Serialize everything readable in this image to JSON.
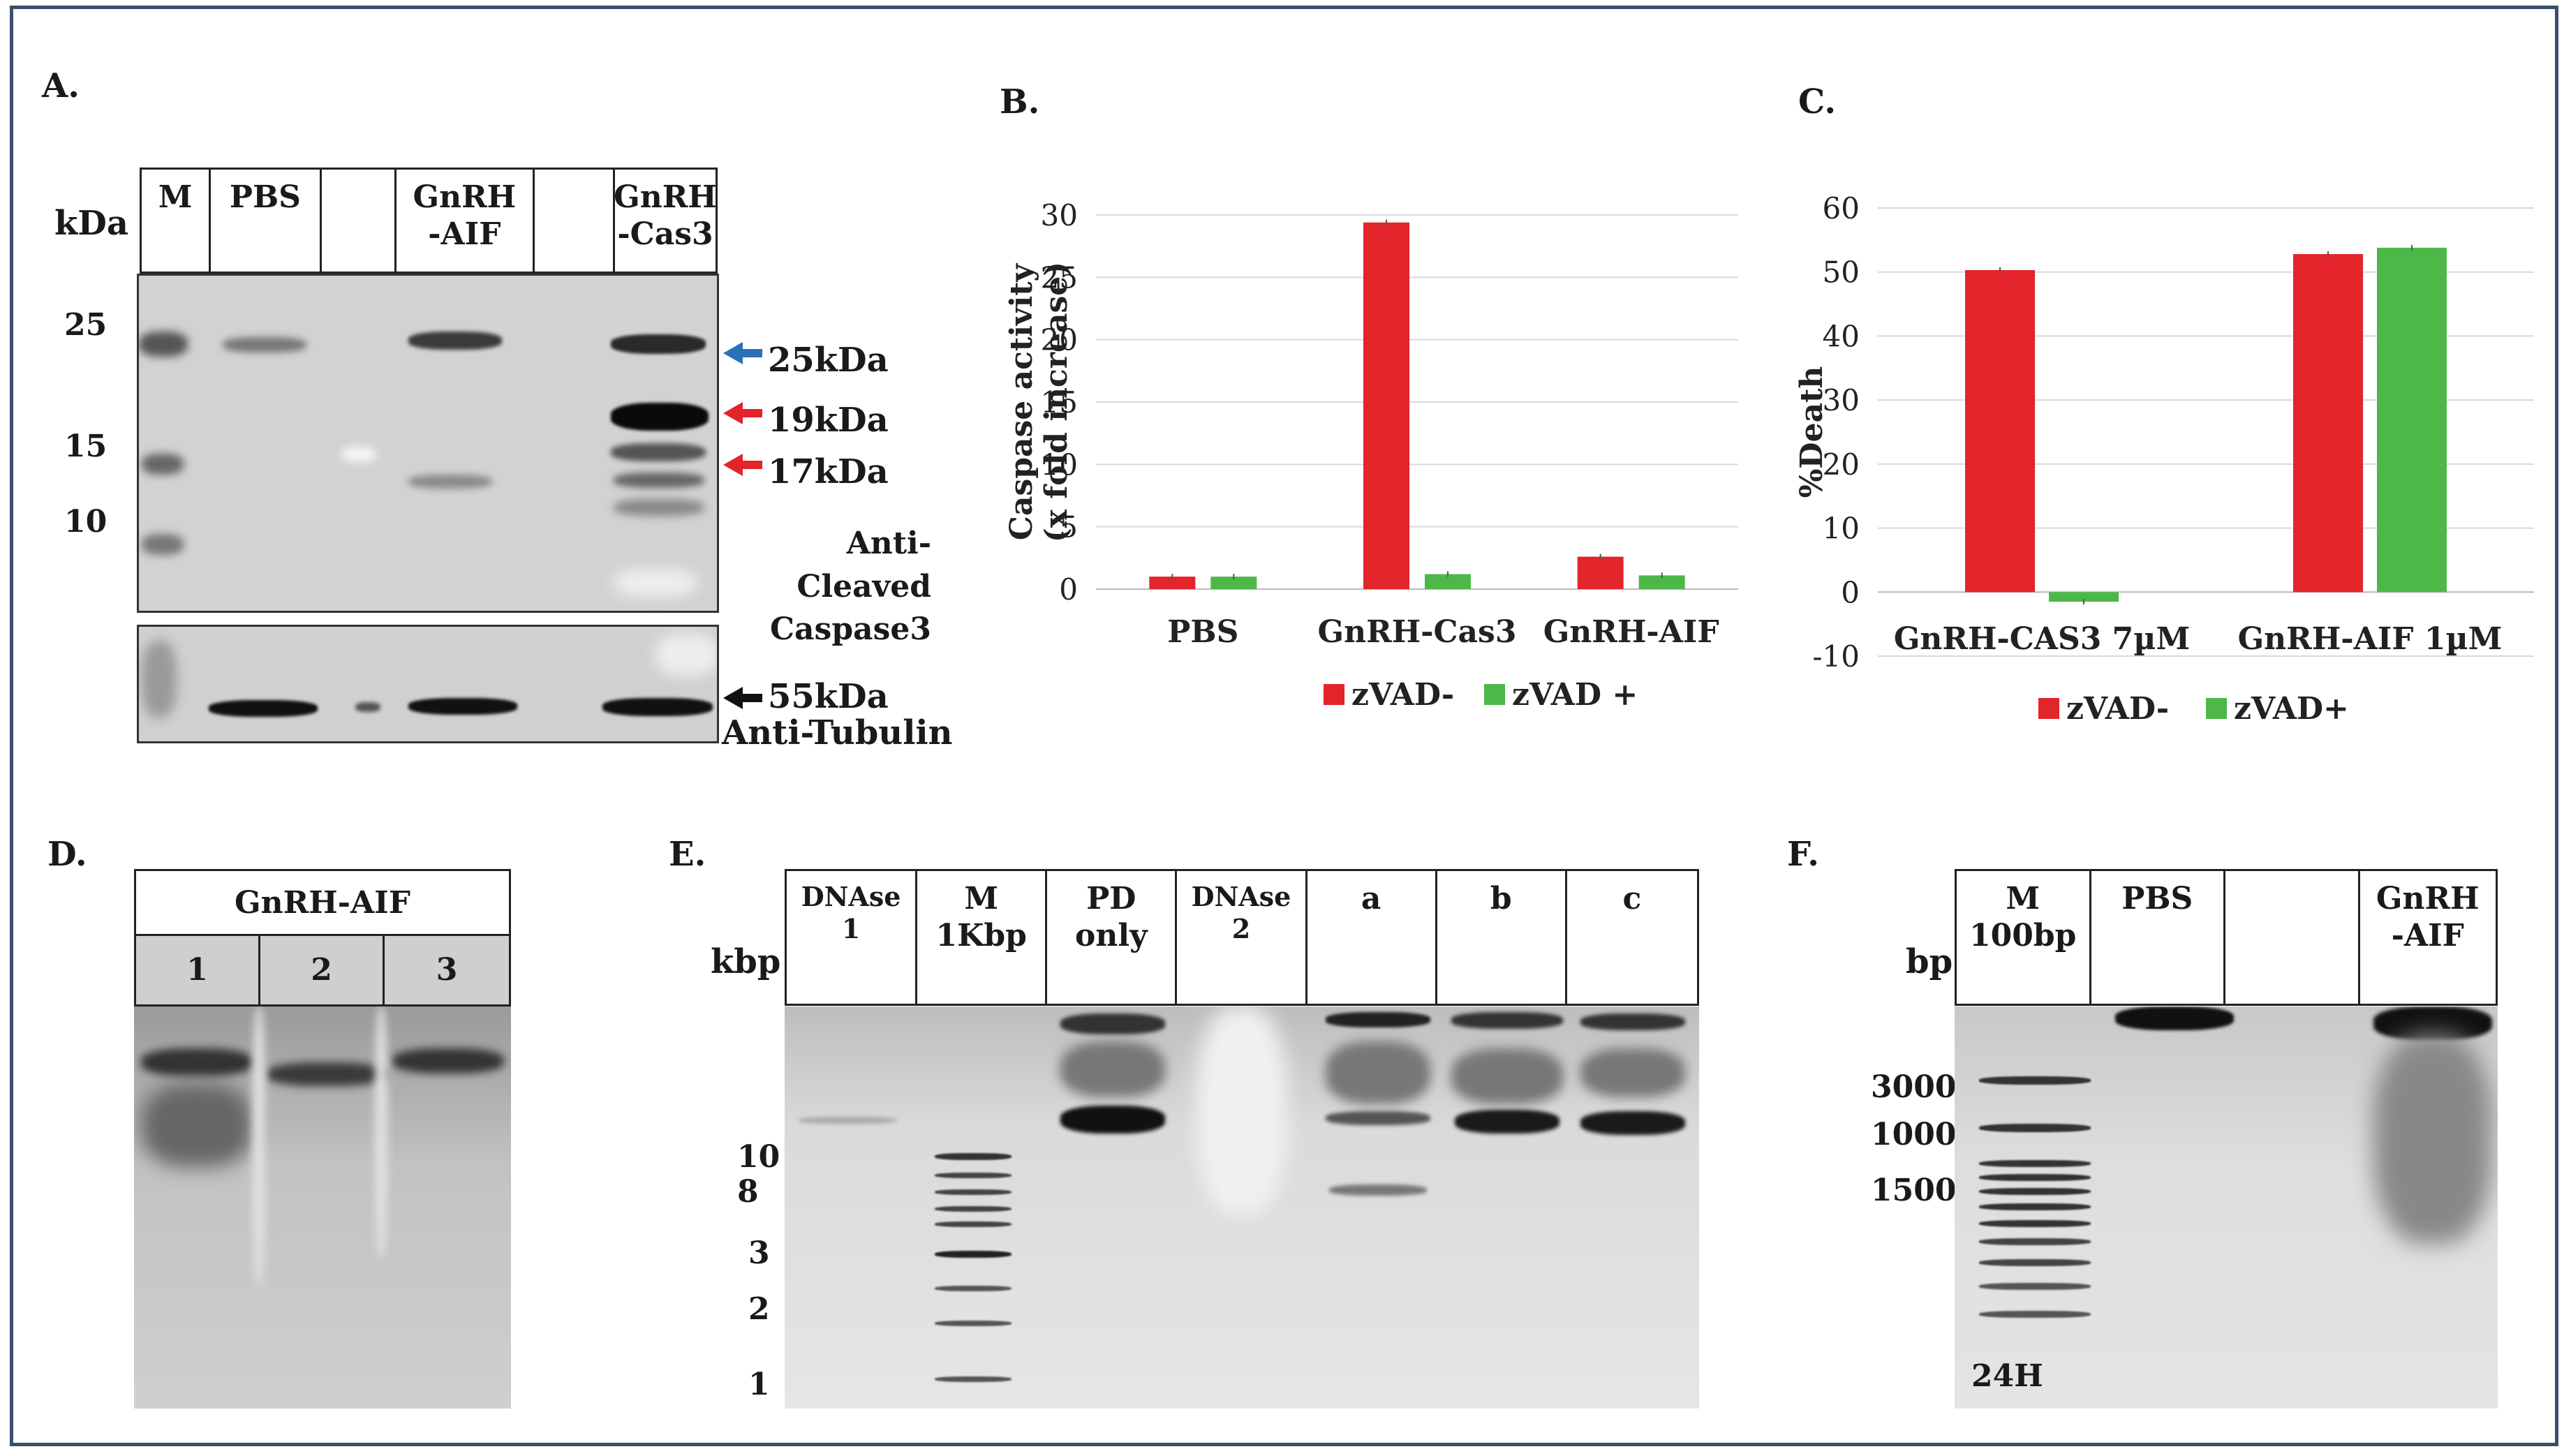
{
  "panels": {
    "A": {
      "label": "A.",
      "kda_unit": "kDa",
      "lanes": [
        "M",
        "PBS",
        "",
        "GnRH\n-AIF",
        "",
        "GnRH\n-Cas3"
      ],
      "markers": [
        "25",
        "15",
        "10"
      ],
      "band_labels": [
        "25kDa",
        "19kDa",
        "17kDa"
      ],
      "band_arrow_colors": [
        "#2a72b8",
        "#e3242b",
        "#e3242b"
      ],
      "antibody_top": "Anti-Cleaved\nCaspase3",
      "tubulin_label": "55kDa",
      "antibody_bottom": "Anti-Tubulin"
    },
    "B": {
      "label": "B."
    },
    "C": {
      "label": "C."
    },
    "D": {
      "label": "D.",
      "title": "GnRH-AIF",
      "lanes": [
        "1",
        "2",
        "3"
      ]
    },
    "E": {
      "label": "E.",
      "unit": "kbp",
      "lanes": [
        "DNAse\n1",
        "M\n1Kbp",
        "PD\nonly",
        "DNAse\n2",
        "a",
        "b",
        "c"
      ],
      "markers": [
        "10",
        "8",
        "3",
        "2",
        "1"
      ]
    },
    "F": {
      "label": "F.",
      "unit": "bp",
      "lanes": [
        "M\n100bp",
        "PBS",
        "",
        "GnRH\n-AIF"
      ],
      "markers": [
        "3000",
        "1000",
        "1500"
      ],
      "time": "24H"
    }
  },
  "colors": {
    "red": "#e3242b",
    "green": "#4db848",
    "frame": "#3b4f6b"
  },
  "chart_data": [
    {
      "type": "bar",
      "ylabel": "Caspase activity\n(x fold increase)",
      "categories": [
        "PBS",
        "GnRH-Cas3",
        "GnRH-AIF"
      ],
      "series": [
        {
          "name": "zVAD-",
          "color": "#e3242b",
          "values": [
            1.0,
            29.4,
            2.6
          ]
        },
        {
          "name": "zVAD +",
          "color": "#4db848",
          "values": [
            1.0,
            1.2,
            1.1
          ]
        }
      ],
      "ylim": [
        0,
        30
      ],
      "yticks": [
        "0",
        "5",
        "10",
        "15",
        "20",
        "25",
        "30"
      ],
      "grid": true,
      "legend": "bottom"
    },
    {
      "type": "bar",
      "ylabel": "%Death",
      "categories": [
        "GnRH-CAS3 7µM",
        "GnRH-AIF 1µM"
      ],
      "series": [
        {
          "name": "zVAD-",
          "color": "#e3242b",
          "values": [
            50.3,
            52.8
          ]
        },
        {
          "name": "zVAD+",
          "color": "#4db848",
          "values": [
            -1.5,
            53.8
          ]
        }
      ],
      "ylim": [
        -10,
        60
      ],
      "yticks": [
        "-10",
        "0",
        "10",
        "20",
        "30",
        "40",
        "50",
        "60"
      ],
      "grid": true,
      "legend": "bottom"
    }
  ]
}
